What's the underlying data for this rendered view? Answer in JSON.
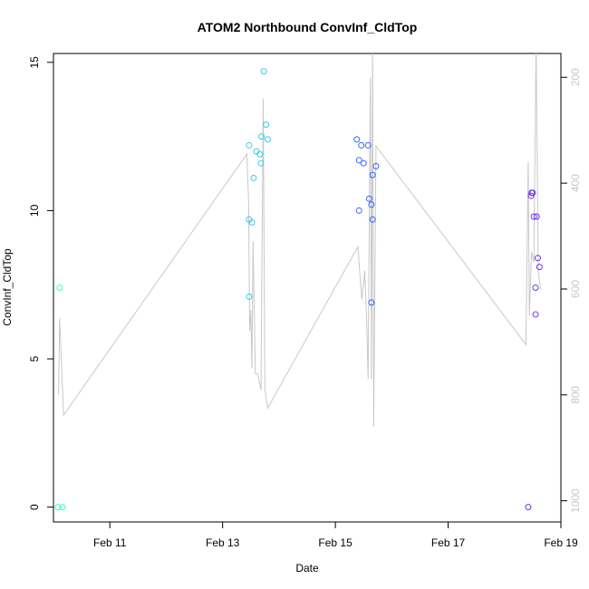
{
  "chart_data": {
    "type": "scatter",
    "title": "ATOM2 Northbound ConvInf_CldTop",
    "xlabel": "Date",
    "ylabel": "ConvInf_CldTop",
    "x_unit": "day of Feb (fractional)",
    "xlim": [
      10.0,
      19.0
    ],
    "ylim": [
      -0.5,
      15.3
    ],
    "x_ticks": [
      {
        "value": 11,
        "label": "Feb 11"
      },
      {
        "value": 13,
        "label": "Feb 13"
      },
      {
        "value": 15,
        "label": "Feb 15"
      },
      {
        "value": 17,
        "label": "Feb 17"
      },
      {
        "value": 19,
        "label": "Feb 19"
      }
    ],
    "y_ticks": [
      {
        "value": 0,
        "label": "0"
      },
      {
        "value": 5,
        "label": "5"
      },
      {
        "value": 10,
        "label": "10"
      },
      {
        "value": 15,
        "label": "15"
      }
    ],
    "right_axis": {
      "color": "#c8c8c8",
      "lim": [
        1040,
        155
      ],
      "ticks": [
        {
          "value": 200,
          "label": "200"
        },
        {
          "value": 400,
          "label": "400"
        },
        {
          "value": 600,
          "label": "600"
        },
        {
          "value": 800,
          "label": "800"
        },
        {
          "value": 1000,
          "label": "1000"
        }
      ]
    },
    "grid": false,
    "points": [
      {
        "x": 10.11,
        "y": 7.4,
        "color": "#33ffcc"
      },
      {
        "x": 10.08,
        "y": 0.0,
        "color": "#33ffcc"
      },
      {
        "x": 10.16,
        "y": 0.0,
        "color": "#33ffcc"
      },
      {
        "x": 13.47,
        "y": 7.1,
        "color": "#33ccee"
      },
      {
        "x": 13.47,
        "y": 12.2,
        "color": "#33ccee"
      },
      {
        "x": 13.47,
        "y": 9.7,
        "color": "#33ccee"
      },
      {
        "x": 13.52,
        "y": 9.6,
        "color": "#33ccee"
      },
      {
        "x": 13.55,
        "y": 11.1,
        "color": "#33ccee"
      },
      {
        "x": 13.6,
        "y": 12.0,
        "color": "#33ccee"
      },
      {
        "x": 13.66,
        "y": 11.9,
        "color": "#33ccee"
      },
      {
        "x": 13.68,
        "y": 11.6,
        "color": "#33ccee"
      },
      {
        "x": 13.69,
        "y": 12.5,
        "color": "#33ccee"
      },
      {
        "x": 13.73,
        "y": 14.7,
        "color": "#33ccee"
      },
      {
        "x": 13.77,
        "y": 12.9,
        "color": "#33ccee"
      },
      {
        "x": 13.8,
        "y": 12.4,
        "color": "#33ccee"
      },
      {
        "x": 15.38,
        "y": 12.4,
        "color": "#3366ff"
      },
      {
        "x": 15.42,
        "y": 11.7,
        "color": "#3366ff"
      },
      {
        "x": 15.46,
        "y": 12.2,
        "color": "#3366ff"
      },
      {
        "x": 15.5,
        "y": 11.6,
        "color": "#3366ff"
      },
      {
        "x": 15.42,
        "y": 10.0,
        "color": "#3366ff"
      },
      {
        "x": 15.58,
        "y": 12.2,
        "color": "#3366ff"
      },
      {
        "x": 15.6,
        "y": 10.4,
        "color": "#3366ff"
      },
      {
        "x": 15.64,
        "y": 10.2,
        "color": "#3366ff"
      },
      {
        "x": 15.66,
        "y": 11.2,
        "color": "#3366ff"
      },
      {
        "x": 15.66,
        "y": 9.7,
        "color": "#3366ff"
      },
      {
        "x": 15.64,
        "y": 6.9,
        "color": "#3366ff"
      },
      {
        "x": 15.72,
        "y": 11.5,
        "color": "#3366ff"
      },
      {
        "x": 18.42,
        "y": 0.0,
        "color": "#7733ee"
      },
      {
        "x": 18.47,
        "y": 10.5,
        "color": "#7733ee"
      },
      {
        "x": 18.48,
        "y": 10.6,
        "color": "#7733ee"
      },
      {
        "x": 18.5,
        "y": 10.6,
        "color": "#7733ee"
      },
      {
        "x": 18.52,
        "y": 9.8,
        "color": "#7733ee"
      },
      {
        "x": 18.55,
        "y": 7.4,
        "color": "#7733ee"
      },
      {
        "x": 18.57,
        "y": 9.8,
        "color": "#7733ee"
      },
      {
        "x": 18.59,
        "y": 8.4,
        "color": "#7733ee"
      },
      {
        "x": 18.62,
        "y": 8.1,
        "color": "#7733ee"
      },
      {
        "x": 18.55,
        "y": 6.5,
        "color": "#7733ee"
      }
    ],
    "line_series": {
      "color": "#c8c8c8",
      "axis": "right",
      "points": [
        [
          10.09,
          800
        ],
        [
          10.11,
          655
        ],
        [
          10.18,
          838
        ],
        [
          13.43,
          345
        ],
        [
          13.46,
          430
        ],
        [
          13.48,
          680
        ],
        [
          13.5,
          640
        ],
        [
          13.52,
          750
        ],
        [
          13.54,
          510
        ],
        [
          13.58,
          760
        ],
        [
          13.62,
          760
        ],
        [
          13.68,
          790
        ],
        [
          13.72,
          240
        ],
        [
          13.75,
          790
        ],
        [
          13.8,
          825
        ],
        [
          15.4,
          520
        ],
        [
          15.44,
          580
        ],
        [
          15.47,
          620
        ],
        [
          15.52,
          565
        ],
        [
          15.56,
          680
        ],
        [
          15.58,
          770
        ],
        [
          15.62,
          200
        ],
        [
          15.64,
          770
        ],
        [
          15.66,
          130
        ],
        [
          15.68,
          860
        ],
        [
          15.72,
          330
        ],
        [
          18.38,
          705
        ],
        [
          18.42,
          360
        ],
        [
          18.44,
          650
        ],
        [
          18.48,
          530
        ],
        [
          18.52,
          550
        ],
        [
          18.56,
          140
        ],
        [
          18.6,
          570
        ],
        [
          18.64,
          600
        ]
      ]
    }
  }
}
